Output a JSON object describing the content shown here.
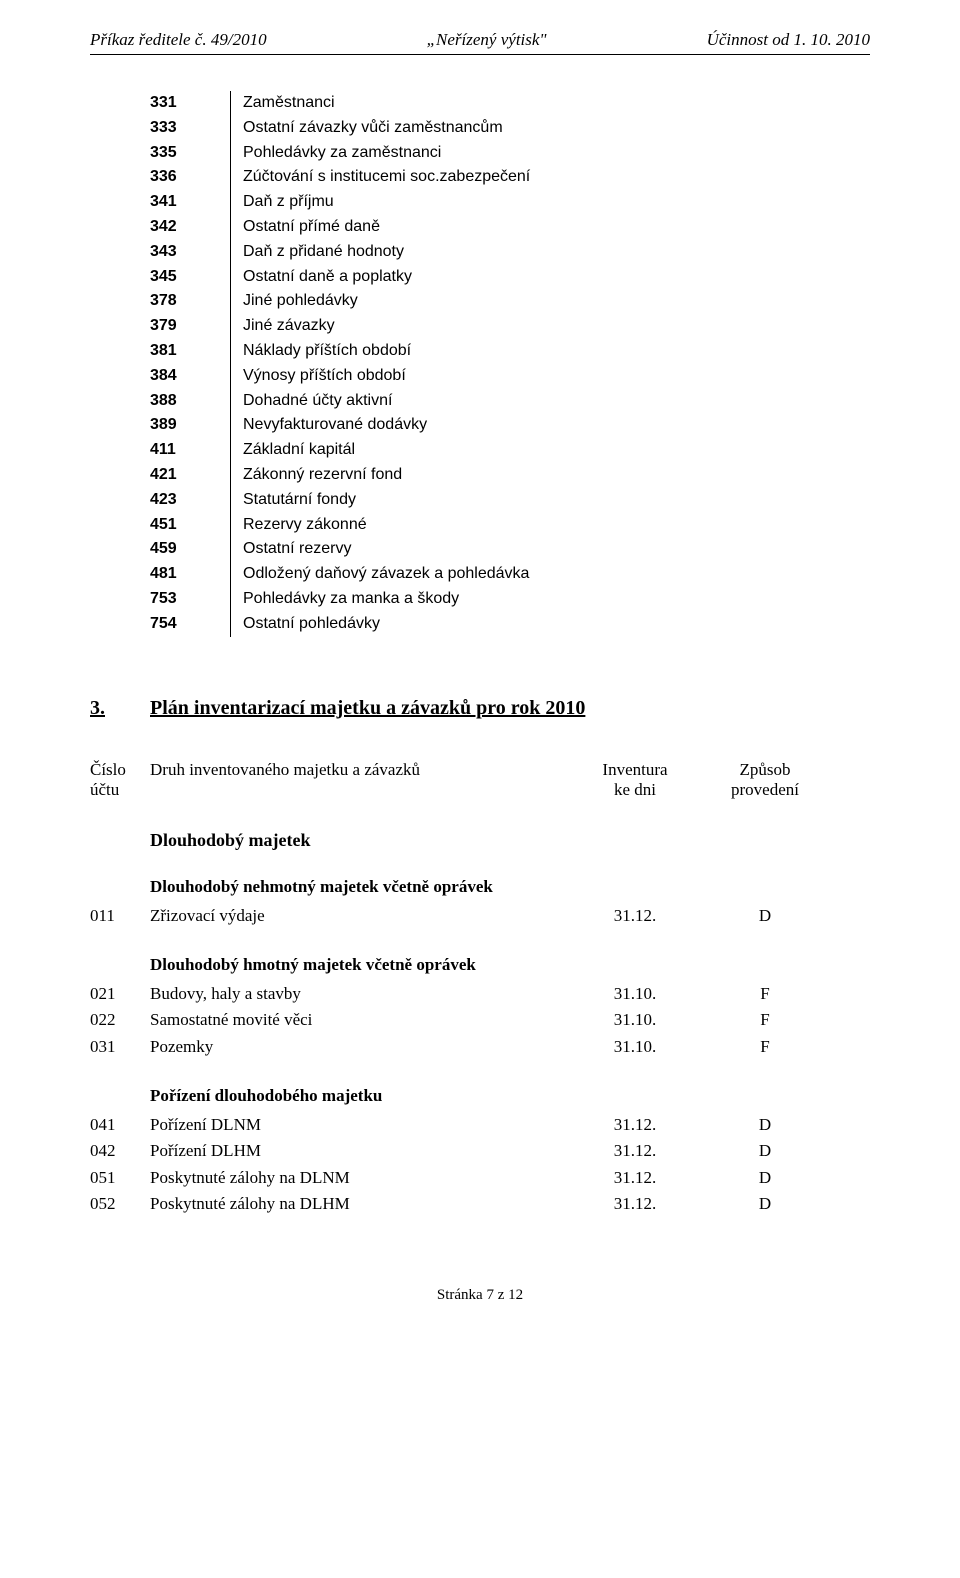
{
  "header": {
    "left": "Příkaz ředitele č. 49/2010",
    "center": "„Neřízený výtisk\"",
    "right": "Účinnost od 1. 10. 2010"
  },
  "accounts": [
    {
      "code": "331",
      "desc": "Zaměstnanci"
    },
    {
      "code": "333",
      "desc": "Ostatní závazky vůči zaměstnancům"
    },
    {
      "code": "335",
      "desc": "Pohledávky za zaměstnanci"
    },
    {
      "code": "336",
      "desc": "Zúčtování s institucemi soc.zabezpečení"
    },
    {
      "code": "341",
      "desc": "Daň z příjmu"
    },
    {
      "code": "342",
      "desc": "Ostatní přímé daně"
    },
    {
      "code": "343",
      "desc": "Daň z přidané hodnoty"
    },
    {
      "code": "345",
      "desc": "Ostatní daně a poplatky"
    },
    {
      "code": "378",
      "desc": "Jiné pohledávky"
    },
    {
      "code": "379",
      "desc": "Jiné závazky"
    },
    {
      "code": "381",
      "desc": "Náklady příštích období"
    },
    {
      "code": "384",
      "desc": "Výnosy příštích období"
    },
    {
      "code": "388",
      "desc": "Dohadné účty aktivní"
    },
    {
      "code": "389",
      "desc": "Nevyfakturované dodávky"
    },
    {
      "code": "411",
      "desc": "Základní kapitál"
    },
    {
      "code": "421",
      "desc": "Zákonný rezervní fond"
    },
    {
      "code": "423",
      "desc": "Statutární fondy"
    },
    {
      "code": "451",
      "desc": "Rezervy zákonné"
    },
    {
      "code": "459",
      "desc": "Ostatní rezervy"
    },
    {
      "code": "481",
      "desc": "Odložený daňový závazek a pohledávka"
    },
    {
      "code": "753",
      "desc": "Pohledávky za manka a škody"
    },
    {
      "code": "754",
      "desc": "Ostatní pohledávky"
    }
  ],
  "section": {
    "num": "3.",
    "title": "Plán inventarizací majetku a závazků pro rok 2010"
  },
  "inv_header": {
    "col0_line1": "Číslo",
    "col0_line2": "účtu",
    "col1": "Druh inventovaného majetku  a závazků",
    "col2_line1": "Inventura",
    "col2_line2": "ke dni",
    "col3_line1": "Způsob",
    "col3_line2": "provedení"
  },
  "top_heading": "Dlouhodobý majetek",
  "groups": [
    {
      "heading": "Dlouhodobý nehmotný majetek včetně oprávek",
      "rows": [
        {
          "code": "011",
          "desc": "Zřizovací výdaje",
          "date": "31.12.",
          "method": "D"
        }
      ]
    },
    {
      "heading": "Dlouhodobý hmotný majetek včetně oprávek",
      "rows": [
        {
          "code": "021",
          "desc": "Budovy, haly a stavby",
          "date": "31.10.",
          "method": "F"
        },
        {
          "code": "022",
          "desc": "Samostatné movité věci",
          "date": "31.10.",
          "method": "F"
        },
        {
          "code": "031",
          "desc": "Pozemky",
          "date": "31.10.",
          "method": "F"
        }
      ]
    },
    {
      "heading": "Pořízení dlouhodobého majetku",
      "rows": [
        {
          "code": "041",
          "desc": "Pořízení DLNM",
          "date": "31.12.",
          "method": "D"
        },
        {
          "code": "042",
          "desc": "Pořízení DLHM",
          "date": "31.12.",
          "method": "D"
        },
        {
          "code": "051",
          "desc": "Poskytnuté zálohy na DLNM",
          "date": "31.12.",
          "method": "D"
        },
        {
          "code": "052",
          "desc": "Poskytnuté zálohy na DLHM",
          "date": "31.12.",
          "method": "D"
        }
      ]
    }
  ],
  "footer": "Stránka 7 z 12"
}
